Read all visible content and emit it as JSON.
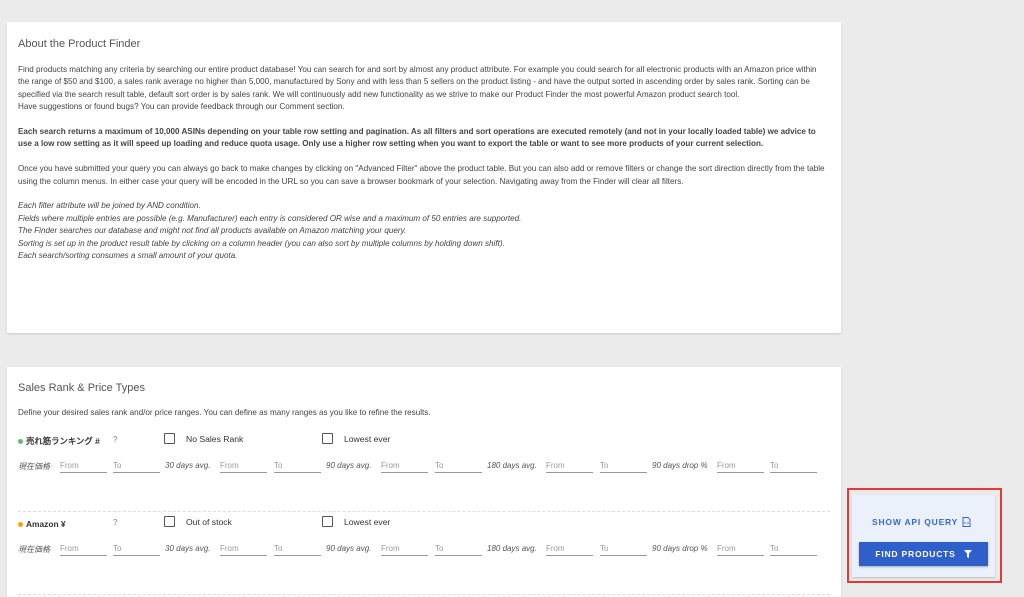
{
  "about": {
    "title": "About the Product Finder",
    "p1": "Find products matching any criteria by searching our entire product database! You can search for and sort by almost any product attribute. For example you could search for all electronic products with an Amazon price within the range of $50 and $100, a sales rank average no higher than 5,000, manufactured by Sony and with less than 5 sellers on the product listing - and have the output sorted in ascending order by sales rank. Sorting can be specified via the search result table, default sort order is by sales rank. We will continuously add new functionality as we strive to make our Product Finder the most powerful Amazon product search tool.",
    "p1b": "Have suggestions or found bugs? You can provide feedback through our Comment section.",
    "p2": "Each search returns a maximum of 10,000 ASINs depending on your table row setting and pagination. As all filters and sort operations are executed remotely (and not in your locally loaded table) we advice to use a low row setting as it will speed up loading and reduce quota usage. Only use a higher row setting when you want to export the table or want to see more products of your current selection.",
    "p3": "Once you have submitted your query you can always go back to make changes by clicking on \"Advanced Filter\" above the product table. But you can also add or remove filters or change the sort direction directly from the table using the column menus. In either case your query will be encoded in the URL so you can save a browser bookmark of your selection. Navigating away from the Finder will clear all filters.",
    "notes": [
      "Each filter attribute will be joined by AND condition.",
      "Fields where multiple entries are possible (e.g. Manufacturer) each entry is considered OR wise and a maximum of 50 entries are supported.",
      "The Finder searches our database and might not find all products available on Amazon matching your query.",
      "Sorting is set up in the product result table by clicking on a column header (you can also sort by multiple columns by holding down shift).",
      "Each search/sorting consumes a small amount of your quota."
    ]
  },
  "ranks": {
    "title": "Sales Rank & Price Types",
    "desc": "Define your desired sales rank and/or price ranges. You can define as many ranges as you like to refine the results.",
    "from": "From",
    "to": "To",
    "help": "?",
    "range_labels": [
      "現在価格",
      "30 days avg.",
      "90 days avg.",
      "180 days avg.",
      "90 days drop %"
    ],
    "groups": [
      {
        "name": "売れ筋ランキング #",
        "color": "#66bb6a",
        "check1": "No Sales Rank",
        "check2": "Lowest ever"
      },
      {
        "name": "Amazon ¥",
        "color": "#ffa000",
        "check1": "Out of stock",
        "check2": "Lowest ever"
      }
    ]
  },
  "actions": {
    "show_api": "SHOW API QUERY",
    "find": "FIND PRODUCTS",
    "accent": "#2f5fcb",
    "highlight": "#e53935"
  }
}
